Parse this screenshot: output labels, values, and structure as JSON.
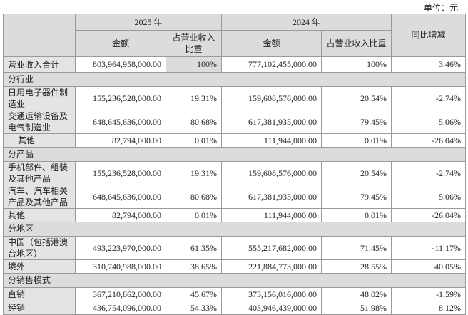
{
  "unit": "单位：元",
  "header": {
    "year_2025": "2025 年",
    "year_2024": "2024 年",
    "amount": "金额",
    "ratio_2025": "占营业收入比重",
    "ratio_2024": "占营业收入比重",
    "yoy": "同比增减"
  },
  "total": {
    "label": "营业收入合计",
    "a25": "803,964,958,000.00",
    "r25": "100%",
    "a24": "777,102,455,000.00",
    "r24": "100%",
    "yoy": "3.46%"
  },
  "sections": [
    {
      "title": "分行业",
      "rows": [
        {
          "label": "日用电子器件制造业",
          "a25": "155,236,528,000.00",
          "r25": "19.31%",
          "a24": "159,608,576,000.00",
          "r24": "20.54%",
          "yoy": "-2.74%"
        },
        {
          "label": "交通运输设备及电气制造业",
          "a25": "648,645,636,000.00",
          "r25": "80.68%",
          "a24": "617,381,935,000.00",
          "r24": "79.45%",
          "yoy": "5.06%"
        },
        {
          "label": "其他",
          "a25": "82,794,000.00",
          "r25": "0.01%",
          "a24": "111,944,000.00",
          "r24": "0.01%",
          "yoy": "-26.04%"
        }
      ]
    },
    {
      "title": "分产品",
      "rows": [
        {
          "label": "手机部件、组装及其他产品",
          "a25": "155,236,528,000.00",
          "r25": "19.31%",
          "a24": "159,608,576,000.00",
          "r24": "20.54%",
          "yoy": "-2.74%"
        },
        {
          "label": "汽车、汽车相关产品及其他产品",
          "a25": "648,645,636,000.00",
          "r25": "80.68%",
          "a24": "617,381,935,000.00",
          "r24": "79.45%",
          "yoy": "5.06%"
        },
        {
          "label": "其他",
          "a25": "82,794,000.00",
          "r25": "0.01%",
          "a24": "111,944,000.00",
          "r24": "0.01%",
          "yoy": "-26.04%"
        }
      ]
    },
    {
      "title": "分地区",
      "rows": [
        {
          "label": "中国（包括港澳台地区）",
          "a25": "493,223,970,000.00",
          "r25": "61.35%",
          "a24": "555,217,682,000.00",
          "r24": "71.45%",
          "yoy": "-11.17%"
        },
        {
          "label": "境外",
          "a25": "310,740,988,000.00",
          "r25": "38.65%",
          "a24": "221,884,773,000.00",
          "r24": "28.55%",
          "yoy": "40.05%"
        }
      ]
    },
    {
      "title": "分销售模式",
      "rows": [
        {
          "label": "直销",
          "a25": "367,210,862,000.00",
          "r25": "45.67%",
          "a24": "373,156,016,000.00",
          "r24": "48.02%",
          "yoy": "-1.59%"
        },
        {
          "label": "经销",
          "a25": "436,754,096,000.00",
          "r25": "54.33%",
          "a24": "403,946,439,000.00",
          "r24": "51.98%",
          "yoy": "8.12%"
        }
      ]
    }
  ]
}
